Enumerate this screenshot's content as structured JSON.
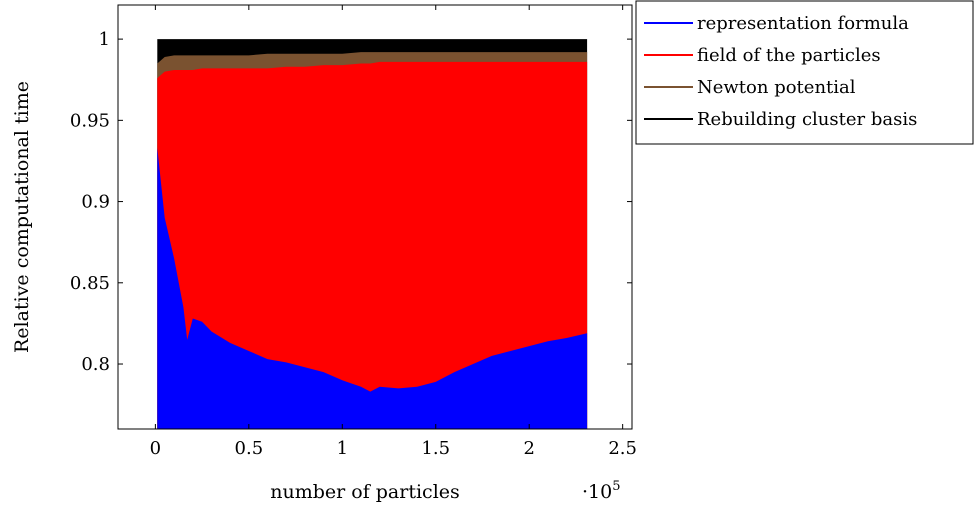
{
  "chart_data": {
    "type": "area",
    "stacked": true,
    "xlabel": "number of particles",
    "ylabel": "Relative computational time",
    "x_multiplier_label": "·10",
    "x_multiplier_exponent": "5",
    "xlim": [
      -0.2,
      2.55
    ],
    "ylim": [
      0.76,
      1.021
    ],
    "xticks": [
      0,
      0.5,
      1,
      1.5,
      2,
      2.5
    ],
    "xtick_labels": [
      "0",
      "0.5",
      "1",
      "1.5",
      "2",
      "2.5"
    ],
    "yticks": [
      0.8,
      0.85,
      0.9,
      0.95,
      1
    ],
    "ytick_labels": [
      "0.8",
      "0.85",
      "0.9",
      "0.95",
      "1"
    ],
    "grid": false,
    "legend_position": "outside-top-right",
    "x": [
      0.01,
      0.05,
      0.1,
      0.15,
      0.17,
      0.2,
      0.25,
      0.3,
      0.4,
      0.5,
      0.6,
      0.7,
      0.8,
      0.9,
      1.0,
      1.1,
      1.15,
      1.2,
      1.3,
      1.4,
      1.5,
      1.6,
      1.7,
      1.8,
      1.9,
      2.0,
      2.1,
      2.2,
      2.31
    ],
    "series": [
      {
        "name": "representation formula",
        "color": "#0000ff",
        "values": [
          0.933,
          0.89,
          0.865,
          0.835,
          0.815,
          0.828,
          0.826,
          0.82,
          0.813,
          0.808,
          0.803,
          0.801,
          0.798,
          0.795,
          0.79,
          0.786,
          0.783,
          0.786,
          0.785,
          0.786,
          0.789,
          0.795,
          0.8,
          0.805,
          0.808,
          0.811,
          0.814,
          0.816,
          0.819
        ]
      },
      {
        "name": "field of the particles",
        "color": "#ff0000",
        "values": [
          0.976,
          0.98,
          0.981,
          0.981,
          0.981,
          0.981,
          0.982,
          0.982,
          0.982,
          0.982,
          0.982,
          0.983,
          0.983,
          0.984,
          0.984,
          0.985,
          0.985,
          0.986,
          0.986,
          0.986,
          0.986,
          0.986,
          0.986,
          0.986,
          0.986,
          0.986,
          0.986,
          0.986,
          0.986
        ]
      },
      {
        "name": "Newton potential",
        "color": "#7a5230",
        "values": [
          0.985,
          0.989,
          0.99,
          0.99,
          0.99,
          0.99,
          0.99,
          0.99,
          0.99,
          0.99,
          0.991,
          0.991,
          0.991,
          0.991,
          0.991,
          0.992,
          0.992,
          0.992,
          0.992,
          0.992,
          0.992,
          0.992,
          0.992,
          0.992,
          0.992,
          0.992,
          0.992,
          0.992,
          0.992
        ]
      },
      {
        "name": "Rebuilding cluster basis",
        "color": "#000000",
        "values": [
          1,
          1,
          1,
          1,
          1,
          1,
          1,
          1,
          1,
          1,
          1,
          1,
          1,
          1,
          1,
          1,
          1,
          1,
          1,
          1,
          1,
          1,
          1,
          1,
          1,
          1,
          1,
          1,
          1
        ]
      }
    ]
  }
}
